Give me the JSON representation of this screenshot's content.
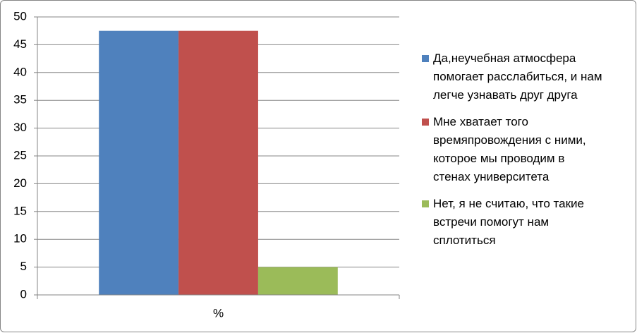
{
  "chart_data": {
    "type": "bar",
    "categories": [
      "%"
    ],
    "series": [
      {
        "name": "Да,неучебная атмосфера помогает расслабиться, и нам легче узнавать друг друга",
        "color": "#4f81bd",
        "values": [
          47.5
        ]
      },
      {
        "name": "Мне хватает того времяпровождения с ними, которое мы проводим в стенах университета",
        "color": "#c0504d",
        "values": [
          47.5
        ]
      },
      {
        "name": "Нет, я не считаю, что такие встречи помогут нам сплотиться",
        "color": "#9bbb59",
        "values": [
          5
        ]
      }
    ],
    "ylim": [
      0,
      50
    ],
    "yticks": [
      0,
      5,
      10,
      15,
      20,
      25,
      30,
      35,
      40,
      45,
      50
    ],
    "grid": true,
    "legend": "right"
  }
}
